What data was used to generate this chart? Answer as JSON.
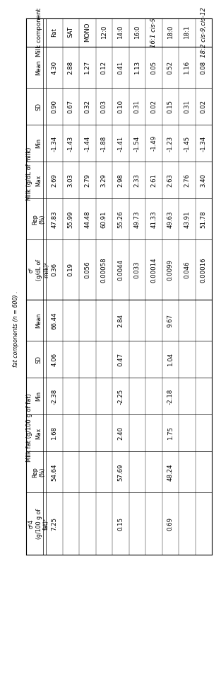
{
  "rows": [
    [
      "Fat",
      "4.30",
      "0.90",
      "-1.34",
      "2.69",
      "47.83",
      "0.36",
      "66.44",
      "4.06",
      "-2.38",
      "1.68",
      "54.64",
      "7.25"
    ],
    [
      "SAT",
      "2.88",
      "0.67",
      "-1.43",
      "3.03",
      "55.99",
      "0.19",
      "",
      "",
      "",
      "",
      "",
      ""
    ],
    [
      "MONO",
      "1.27",
      "0.32",
      "-1.44",
      "2.79",
      "44.48",
      "0.056",
      "",
      "",
      "",
      "",
      "",
      ""
    ],
    [
      "12:0",
      "0.12",
      "0.03",
      "-1.88",
      "3.29",
      "60.91",
      "0.00058",
      "",
      "",
      "",
      "",
      "",
      ""
    ],
    [
      "14:0",
      "0.41",
      "0.10",
      "-1.41",
      "2.98",
      "55.26",
      "0.0044",
      "2.84",
      "0.47",
      "-2.25",
      "2.40",
      "57.69",
      "0.15"
    ],
    [
      "16:0",
      "1.13",
      "0.31",
      "-1.54",
      "2.33",
      "49.73",
      "0.033",
      "",
      "",
      "",
      "",
      "",
      ""
    ],
    [
      "16:1 cis-9",
      "0.05",
      "0.02",
      "-1.49",
      "2.61",
      "41.33",
      "0.00014",
      "",
      "",
      "",
      "",
      "",
      ""
    ],
    [
      "18:0",
      "0.52",
      "0.15",
      "-1.23",
      "2.63",
      "49.63",
      "0.0099",
      "9.67",
      "1.04",
      "-2.18",
      "1.75",
      "48.24",
      "0.69"
    ],
    [
      "18:1",
      "1.16",
      "0.31",
      "-1.45",
      "2.76",
      "43.91",
      "0.046",
      "",
      "",
      "",
      "",
      "",
      ""
    ],
    [
      "18:2 cis-9,cis-12",
      "0.08",
      "0.02",
      "-1.34",
      "3.40",
      "51.78",
      "0.00016",
      "",
      "",
      "",
      "",
      "",
      ""
    ]
  ],
  "milk_header": "Milk (g/dL of milk)",
  "fat_header": "Milk fat (g/100 g of fat)",
  "milk_subheaders": [
    "Mean",
    "SD",
    "Min",
    "Max",
    "Rep\n(%)",
    "σ²\n(g/dL of\nmilk)²"
  ],
  "fat_subheaders": [
    "Mean",
    "SD",
    "Min",
    "Max",
    "Rep\n(%)",
    "σ²4\n(g/100 g of\nfat)²"
  ],
  "component_header": "Milk component",
  "footnote": "fat components (n = 600) .",
  "bg_color": "#ffffff",
  "line_color": "#000000",
  "text_color": "#000000",
  "font_size": 6.2,
  "header_font_size": 6.5
}
